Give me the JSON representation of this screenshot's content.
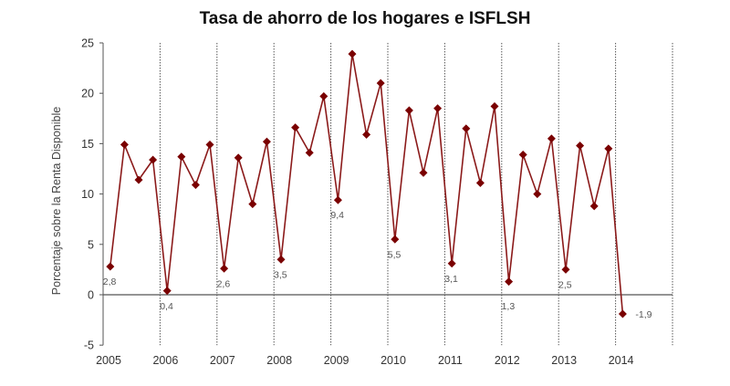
{
  "chart_data": {
    "type": "line",
    "title": "Tasa de ahorro de los hogares e ISFLSH",
    "xlabel": "",
    "ylabel": "Porcentaje sobre la Renta Disponible",
    "ylim": [
      -5,
      25
    ],
    "yticks": [
      -5,
      0,
      5,
      10,
      15,
      20,
      25
    ],
    "xtick_labels": [
      "2005",
      "2006",
      "2007",
      "2008",
      "2009",
      "2010",
      "2011",
      "2012",
      "2013",
      "2014"
    ],
    "grid": "vertical dotted lines at year boundaries",
    "legend": null,
    "frequency": "quarterly",
    "x": [
      "2005Q1",
      "2005Q2",
      "2005Q3",
      "2005Q4",
      "2006Q1",
      "2006Q2",
      "2006Q3",
      "2006Q4",
      "2007Q1",
      "2007Q2",
      "2007Q3",
      "2007Q4",
      "2008Q1",
      "2008Q2",
      "2008Q3",
      "2008Q4",
      "2009Q1",
      "2009Q2",
      "2009Q3",
      "2009Q4",
      "2010Q1",
      "2010Q2",
      "2010Q3",
      "2010Q4",
      "2011Q1",
      "2011Q2",
      "2011Q3",
      "2011Q4",
      "2012Q1",
      "2012Q2",
      "2012Q3",
      "2012Q4",
      "2013Q1",
      "2013Q2",
      "2013Q3",
      "2013Q4",
      "2014Q1"
    ],
    "series": [
      {
        "name": "Tasa de ahorro",
        "color": "#8b1a1a",
        "marker_color": "#7a0000",
        "values": [
          2.8,
          14.9,
          11.4,
          13.4,
          0.4,
          13.7,
          10.9,
          14.9,
          2.6,
          13.6,
          9.0,
          15.2,
          3.5,
          16.6,
          14.1,
          19.7,
          9.4,
          23.9,
          15.9,
          21.0,
          5.5,
          18.3,
          12.1,
          18.5,
          3.1,
          16.5,
          11.1,
          18.7,
          1.3,
          13.9,
          10.0,
          15.5,
          2.5,
          14.8,
          8.8,
          14.5,
          -1.9
        ]
      }
    ],
    "annotations": [
      {
        "index": 0,
        "text": "2,8"
      },
      {
        "index": 4,
        "text": "0,4"
      },
      {
        "index": 8,
        "text": "2,6"
      },
      {
        "index": 12,
        "text": "3,5"
      },
      {
        "index": 16,
        "text": "9,4"
      },
      {
        "index": 20,
        "text": "5,5"
      },
      {
        "index": 24,
        "text": "3,1"
      },
      {
        "index": 28,
        "text": "1,3"
      },
      {
        "index": 32,
        "text": "2,5"
      },
      {
        "index": 36,
        "text": "-1,9"
      }
    ]
  }
}
